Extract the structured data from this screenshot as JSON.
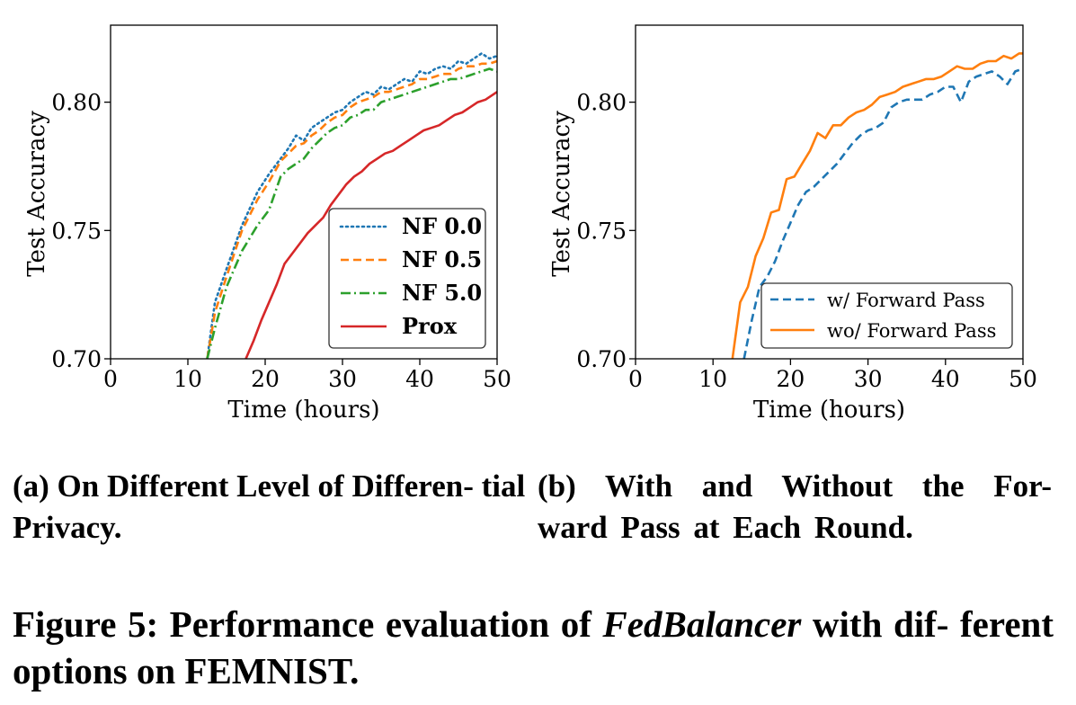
{
  "subcaptions": {
    "a": "(a) On Different Level of Differen- tial Privacy.",
    "b": "(b) With and Without the For- ward Pass at Each Round."
  },
  "caption": {
    "prefix": "Figure 5: Performance evaluation of ",
    "emph": "FedBalancer",
    "suffix": " with dif- ferent options on FEMNIST."
  },
  "chart_data": [
    {
      "type": "line",
      "xlabel": "Time (hours)",
      "ylabel": "Test Accuracy",
      "xlim": [
        0,
        50
      ],
      "ylim": [
        0.7,
        0.83
      ],
      "xticks": [
        0,
        10,
        20,
        30,
        40,
        50
      ],
      "yticks": [
        0.7,
        0.75,
        0.8
      ],
      "ytick_labels": [
        "0.70",
        "0.75",
        "0.80"
      ],
      "grid": false,
      "legend_position": "lower-right",
      "series": [
        {
          "name": "NF 0.0",
          "color": "#1f77b4",
          "style": "dotted",
          "x": [
            12.5,
            13.5,
            15,
            17,
            19,
            20.5,
            22,
            23,
            24,
            25,
            26,
            27,
            28,
            29,
            30,
            31,
            32,
            33,
            34,
            35,
            36,
            37,
            38,
            39,
            40,
            41,
            42,
            43,
            44,
            45,
            46,
            47,
            48,
            49,
            50
          ],
          "y": [
            0.7,
            0.722,
            0.735,
            0.752,
            0.765,
            0.772,
            0.778,
            0.782,
            0.787,
            0.785,
            0.79,
            0.792,
            0.794,
            0.796,
            0.797,
            0.8,
            0.802,
            0.804,
            0.803,
            0.806,
            0.805,
            0.807,
            0.809,
            0.808,
            0.812,
            0.811,
            0.813,
            0.814,
            0.813,
            0.816,
            0.815,
            0.817,
            0.819,
            0.817,
            0.818
          ]
        },
        {
          "name": "NF 0.5",
          "color": "#ff7f0e",
          "style": "dashed",
          "x": [
            12.5,
            13.5,
            15,
            17,
            19,
            20.5,
            22,
            23,
            24,
            25,
            26,
            27,
            28,
            29,
            30,
            31,
            32,
            33,
            34,
            35,
            36,
            37,
            38,
            39,
            40,
            41,
            42,
            43,
            44,
            45,
            46,
            47,
            48,
            49,
            50
          ],
          "y": [
            0.7,
            0.718,
            0.732,
            0.75,
            0.762,
            0.769,
            0.777,
            0.78,
            0.783,
            0.784,
            0.787,
            0.789,
            0.792,
            0.794,
            0.795,
            0.798,
            0.8,
            0.801,
            0.802,
            0.804,
            0.804,
            0.805,
            0.806,
            0.807,
            0.809,
            0.809,
            0.81,
            0.811,
            0.811,
            0.813,
            0.814,
            0.814,
            0.815,
            0.815,
            0.816
          ]
        },
        {
          "name": "NF 5.0",
          "color": "#2ca02c",
          "style": "dashdot",
          "x": [
            12.5,
            13.5,
            15,
            17,
            19,
            20.5,
            22,
            23,
            24,
            25,
            26,
            27,
            28,
            29,
            30,
            31,
            32,
            33,
            34,
            35,
            36,
            37,
            38,
            39,
            40,
            41,
            42,
            43,
            44,
            45,
            46,
            47,
            48,
            49,
            50
          ],
          "y": [
            0.7,
            0.712,
            0.728,
            0.742,
            0.752,
            0.758,
            0.771,
            0.774,
            0.776,
            0.778,
            0.782,
            0.785,
            0.788,
            0.79,
            0.791,
            0.794,
            0.795,
            0.797,
            0.797,
            0.8,
            0.801,
            0.802,
            0.803,
            0.804,
            0.805,
            0.806,
            0.807,
            0.808,
            0.809,
            0.809,
            0.81,
            0.811,
            0.812,
            0.813,
            0.812
          ]
        },
        {
          "name": "Prox",
          "color": "#d62728",
          "style": "solid",
          "x": [
            17.5,
            18.5,
            19.5,
            20.5,
            21.5,
            22.5,
            23.5,
            24.5,
            25.5,
            26.5,
            27.5,
            28.5,
            29.5,
            30.5,
            31.5,
            32.5,
            33.5,
            34.5,
            35.5,
            36.5,
            37.5,
            38.5,
            39.5,
            40.5,
            41.5,
            42.5,
            43.5,
            44.5,
            45.5,
            46.5,
            47.5,
            48.5,
            49.5,
            50
          ],
          "y": [
            0.7,
            0.707,
            0.715,
            0.722,
            0.729,
            0.737,
            0.741,
            0.745,
            0.749,
            0.752,
            0.755,
            0.76,
            0.764,
            0.768,
            0.771,
            0.773,
            0.776,
            0.778,
            0.78,
            0.781,
            0.783,
            0.785,
            0.787,
            0.789,
            0.79,
            0.791,
            0.793,
            0.795,
            0.796,
            0.798,
            0.8,
            0.801,
            0.803,
            0.804
          ]
        }
      ]
    },
    {
      "type": "line",
      "xlabel": "Time (hours)",
      "ylabel": "Test Accuracy",
      "xlim": [
        0,
        50
      ],
      "ylim": [
        0.7,
        0.83
      ],
      "xticks": [
        0,
        10,
        20,
        30,
        40,
        50
      ],
      "yticks": [
        0.7,
        0.75,
        0.8
      ],
      "ytick_labels": [
        "0.70",
        "0.75",
        "0.80"
      ],
      "grid": false,
      "legend_position": "lower-right",
      "series": [
        {
          "name": "w/ Forward Pass",
          "color": "#1f77b4",
          "style": "dashed",
          "x": [
            14,
            15,
            16,
            17,
            18,
            19,
            20,
            21,
            22,
            23,
            24,
            25,
            26,
            27,
            28,
            29,
            30,
            31,
            32,
            33,
            34,
            35,
            36,
            37,
            38,
            39,
            40,
            41,
            42,
            43,
            44,
            45,
            46,
            47,
            48,
            49,
            50
          ],
          "y": [
            0.7,
            0.715,
            0.728,
            0.732,
            0.738,
            0.746,
            0.753,
            0.76,
            0.765,
            0.767,
            0.77,
            0.773,
            0.776,
            0.78,
            0.784,
            0.787,
            0.789,
            0.79,
            0.792,
            0.798,
            0.8,
            0.801,
            0.801,
            0.801,
            0.803,
            0.804,
            0.806,
            0.806,
            0.8,
            0.808,
            0.81,
            0.811,
            0.812,
            0.81,
            0.807,
            0.812,
            0.813
          ]
        },
        {
          "name": "wo/ Forward Pass",
          "color": "#ff7f0e",
          "style": "solid",
          "x": [
            12.5,
            13.5,
            14.5,
            15.5,
            16.5,
            17.5,
            18.5,
            19.5,
            20.5,
            21.5,
            22.5,
            23.5,
            24.5,
            25.5,
            26.5,
            27.5,
            28.5,
            29.5,
            30.5,
            31.5,
            32.5,
            33.5,
            34.5,
            35.5,
            36.5,
            37.5,
            38.5,
            39.5,
            40.5,
            41.5,
            42.5,
            43.5,
            44.5,
            45.5,
            46.5,
            47.5,
            48.5,
            49.5,
            50
          ],
          "y": [
            0.7,
            0.722,
            0.728,
            0.74,
            0.747,
            0.757,
            0.758,
            0.77,
            0.771,
            0.776,
            0.781,
            0.788,
            0.786,
            0.791,
            0.791,
            0.794,
            0.796,
            0.797,
            0.799,
            0.802,
            0.803,
            0.804,
            0.806,
            0.807,
            0.808,
            0.809,
            0.809,
            0.81,
            0.812,
            0.814,
            0.813,
            0.813,
            0.815,
            0.816,
            0.816,
            0.818,
            0.817,
            0.819,
            0.819
          ]
        }
      ]
    }
  ]
}
